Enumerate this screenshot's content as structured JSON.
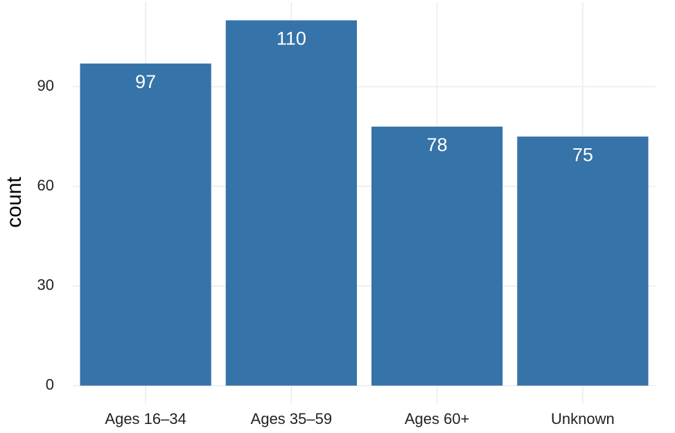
{
  "chart_data": {
    "type": "bar",
    "y_label": "count",
    "categories": [
      "Ages 16–34",
      "Ages 35–59",
      "Ages 60+",
      "Unknown"
    ],
    "values": [
      97,
      110,
      78,
      75
    ],
    "color": "#3673a9",
    "ylim": [
      -5.5,
      115.5
    ],
    "yticks": [
      0,
      30,
      60,
      90
    ],
    "grid": true
  }
}
